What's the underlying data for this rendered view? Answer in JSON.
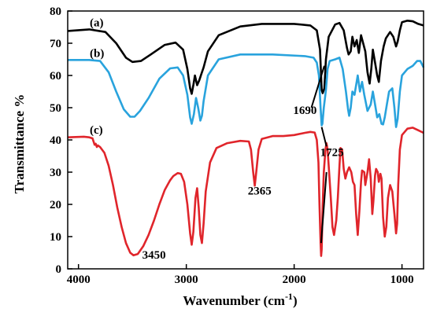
{
  "chart_data": {
    "type": "line",
    "title": "",
    "xlabel": "Wavenumber (cm",
    "xlabel_sup": "-1",
    "xlabel_close": ")",
    "ylabel": "Transmittance %",
    "xlim": [
      4100,
      800
    ],
    "ylim": [
      0,
      80
    ],
    "x_reversed": true,
    "grid": false,
    "legend": "none",
    "x_ticks": [
      4000,
      3000,
      2000,
      1000
    ],
    "y_ticks": [
      0,
      10,
      20,
      30,
      40,
      50,
      60,
      70,
      80
    ],
    "series": [
      {
        "name": "(a)",
        "color": "#000000",
        "points": [
          [
            4100,
            73.8
          ],
          [
            3900,
            74.3
          ],
          [
            3750,
            73.5
          ],
          [
            3650,
            70
          ],
          [
            3560,
            65.5
          ],
          [
            3500,
            64.2
          ],
          [
            3420,
            64.5
          ],
          [
            3330,
            66.5
          ],
          [
            3200,
            69.5
          ],
          [
            3100,
            70.2
          ],
          [
            3030,
            68
          ],
          [
            2990,
            62
          ],
          [
            2965,
            56
          ],
          [
            2950,
            54.3
          ],
          [
            2935,
            57
          ],
          [
            2920,
            60
          ],
          [
            2900,
            57
          ],
          [
            2880,
            58.5
          ],
          [
            2860,
            60.5
          ],
          [
            2840,
            62.5
          ],
          [
            2800,
            67.5
          ],
          [
            2700,
            72.5
          ],
          [
            2500,
            75.2
          ],
          [
            2300,
            76
          ],
          [
            2000,
            76
          ],
          [
            1850,
            75.5
          ],
          [
            1790,
            74
          ],
          [
            1760,
            68
          ],
          [
            1745,
            55.5
          ],
          [
            1735,
            54.5
          ],
          [
            1720,
            56
          ],
          [
            1705,
            65
          ],
          [
            1680,
            72
          ],
          [
            1620,
            75.8
          ],
          [
            1580,
            76.3
          ],
          [
            1540,
            74
          ],
          [
            1510,
            68.5
          ],
          [
            1495,
            66.5
          ],
          [
            1475,
            67.5
          ],
          [
            1460,
            72
          ],
          [
            1440,
            69
          ],
          [
            1420,
            71
          ],
          [
            1400,
            67
          ],
          [
            1380,
            72.5
          ],
          [
            1340,
            67.5
          ],
          [
            1320,
            61
          ],
          [
            1300,
            57.5
          ],
          [
            1285,
            62
          ],
          [
            1270,
            68
          ],
          [
            1250,
            64
          ],
          [
            1230,
            60
          ],
          [
            1215,
            58
          ],
          [
            1195,
            64.5
          ],
          [
            1170,
            69
          ],
          [
            1150,
            71.5
          ],
          [
            1110,
            73.5
          ],
          [
            1080,
            72
          ],
          [
            1055,
            69
          ],
          [
            1040,
            70.5
          ],
          [
            1020,
            74
          ],
          [
            1000,
            76.5
          ],
          [
            950,
            77
          ],
          [
            900,
            76.8
          ],
          [
            850,
            76
          ],
          [
            800,
            75.5
          ]
        ]
      },
      {
        "name": "(b)",
        "color": "#29a3dd",
        "secondary_color": "#8e74d8",
        "points": [
          [
            4100,
            64.8
          ],
          [
            3900,
            64.8
          ],
          [
            3800,
            64.5
          ],
          [
            3720,
            61
          ],
          [
            3650,
            55
          ],
          [
            3580,
            49.5
          ],
          [
            3520,
            47.2
          ],
          [
            3480,
            47.2
          ],
          [
            3430,
            49
          ],
          [
            3350,
            53
          ],
          [
            3250,
            59
          ],
          [
            3150,
            62.2
          ],
          [
            3080,
            62.5
          ],
          [
            3030,
            60
          ],
          [
            2990,
            54
          ],
          [
            2965,
            47
          ],
          [
            2950,
            45
          ],
          [
            2930,
            48
          ],
          [
            2910,
            53
          ],
          [
            2890,
            50
          ],
          [
            2870,
            46
          ],
          [
            2855,
            47.5
          ],
          [
            2840,
            52
          ],
          [
            2800,
            60
          ],
          [
            2700,
            65
          ],
          [
            2500,
            66.5
          ],
          [
            2200,
            66.5
          ],
          [
            1900,
            66
          ],
          [
            1820,
            65.5
          ],
          [
            1790,
            64
          ],
          [
            1770,
            60
          ],
          [
            1755,
            50
          ],
          [
            1745,
            44.5
          ],
          [
            1738,
            45
          ],
          [
            1725,
            50
          ],
          [
            1705,
            55.5
          ],
          [
            1690,
            62
          ],
          [
            1670,
            64.5
          ],
          [
            1620,
            65
          ],
          [
            1580,
            65.5
          ],
          [
            1550,
            62
          ],
          [
            1520,
            55
          ],
          [
            1500,
            49.5
          ],
          [
            1490,
            47.5
          ],
          [
            1475,
            50
          ],
          [
            1460,
            55
          ],
          [
            1440,
            54
          ],
          [
            1410,
            60
          ],
          [
            1390,
            55
          ],
          [
            1370,
            58
          ],
          [
            1350,
            54
          ],
          [
            1320,
            49
          ],
          [
            1290,
            51
          ],
          [
            1270,
            55
          ],
          [
            1250,
            51
          ],
          [
            1230,
            47
          ],
          [
            1210,
            48
          ],
          [
            1190,
            45
          ],
          [
            1175,
            44.8
          ],
          [
            1160,
            47
          ],
          [
            1140,
            51
          ],
          [
            1120,
            55
          ],
          [
            1090,
            56
          ],
          [
            1070,
            50
          ],
          [
            1055,
            44
          ],
          [
            1040,
            46.5
          ],
          [
            1020,
            55
          ],
          [
            1000,
            60
          ],
          [
            950,
            62
          ],
          [
            900,
            63
          ],
          [
            860,
            64.5
          ],
          [
            830,
            64.5
          ],
          [
            800,
            62.5
          ]
        ]
      },
      {
        "name": "(c)",
        "color": "#e0252b",
        "points": [
          [
            4100,
            40.8
          ],
          [
            3950,
            41
          ],
          [
            3900,
            40.8
          ],
          [
            3870,
            40.5
          ],
          [
            3850,
            38.5
          ],
          [
            3840,
            38.8
          ],
          [
            3830,
            37.8
          ],
          [
            3820,
            38.3
          ],
          [
            3800,
            37.8
          ],
          [
            3760,
            36
          ],
          [
            3720,
            32
          ],
          [
            3680,
            26
          ],
          [
            3640,
            19
          ],
          [
            3600,
            13
          ],
          [
            3560,
            8
          ],
          [
            3520,
            5
          ],
          [
            3490,
            4.2
          ],
          [
            3450,
            4.6
          ],
          [
            3400,
            7
          ],
          [
            3350,
            10.5
          ],
          [
            3300,
            15
          ],
          [
            3250,
            20
          ],
          [
            3200,
            24.5
          ],
          [
            3150,
            27.5
          ],
          [
            3120,
            28.8
          ],
          [
            3080,
            29.7
          ],
          [
            3050,
            29.5
          ],
          [
            3020,
            27
          ],
          [
            2990,
            20
          ],
          [
            2965,
            11
          ],
          [
            2950,
            7.5
          ],
          [
            2935,
            11.5
          ],
          [
            2915,
            22
          ],
          [
            2900,
            25
          ],
          [
            2885,
            19
          ],
          [
            2870,
            10.5
          ],
          [
            2855,
            8
          ],
          [
            2840,
            14
          ],
          [
            2820,
            24
          ],
          [
            2780,
            33
          ],
          [
            2720,
            37.5
          ],
          [
            2620,
            39
          ],
          [
            2500,
            39.7
          ],
          [
            2420,
            39.5
          ],
          [
            2400,
            37
          ],
          [
            2380,
            30
          ],
          [
            2365,
            25.8
          ],
          [
            2350,
            30.5
          ],
          [
            2330,
            37
          ],
          [
            2300,
            40.3
          ],
          [
            2200,
            41.2
          ],
          [
            2100,
            41.2
          ],
          [
            2000,
            41.5
          ],
          [
            1900,
            42.2
          ],
          [
            1850,
            42.5
          ],
          [
            1810,
            42.3
          ],
          [
            1790,
            40
          ],
          [
            1775,
            33
          ],
          [
            1765,
            20
          ],
          [
            1755,
            8
          ],
          [
            1750,
            4
          ],
          [
            1745,
            6
          ],
          [
            1735,
            20
          ],
          [
            1725,
            30
          ],
          [
            1710,
            37
          ],
          [
            1700,
            39
          ],
          [
            1690,
            37
          ],
          [
            1680,
            32
          ],
          [
            1660,
            22
          ],
          [
            1645,
            13
          ],
          [
            1630,
            10.5
          ],
          [
            1610,
            15
          ],
          [
            1595,
            22
          ],
          [
            1580,
            32
          ],
          [
            1570,
            37.5
          ],
          [
            1555,
            37
          ],
          [
            1540,
            31
          ],
          [
            1525,
            28
          ],
          [
            1510,
            30
          ],
          [
            1490,
            31.5
          ],
          [
            1470,
            30
          ],
          [
            1455,
            27
          ],
          [
            1440,
            26
          ],
          [
            1425,
            17
          ],
          [
            1410,
            10.5
          ],
          [
            1395,
            18
          ],
          [
            1380,
            27
          ],
          [
            1370,
            30.5
          ],
          [
            1350,
            30
          ],
          [
            1340,
            26
          ],
          [
            1320,
            30
          ],
          [
            1305,
            34
          ],
          [
            1290,
            28
          ],
          [
            1275,
            17
          ],
          [
            1265,
            21
          ],
          [
            1250,
            29
          ],
          [
            1240,
            31
          ],
          [
            1225,
            30
          ],
          [
            1215,
            27
          ],
          [
            1200,
            29.5
          ],
          [
            1190,
            28
          ],
          [
            1175,
            16
          ],
          [
            1160,
            10
          ],
          [
            1145,
            13
          ],
          [
            1130,
            22
          ],
          [
            1110,
            26
          ],
          [
            1090,
            24
          ],
          [
            1070,
            17
          ],
          [
            1055,
            11
          ],
          [
            1045,
            14
          ],
          [
            1035,
            26
          ],
          [
            1020,
            37
          ],
          [
            1000,
            41.5
          ],
          [
            950,
            43.5
          ],
          [
            900,
            43.8
          ],
          [
            850,
            43
          ],
          [
            800,
            42.2
          ]
        ]
      }
    ],
    "annotations": [
      {
        "text": "1690",
        "x": 1900,
        "y": 48
      },
      {
        "text": "1725",
        "x": 1650,
        "y": 35
      },
      {
        "text": "2365",
        "x": 2320,
        "y": 23
      },
      {
        "text": "3450",
        "x": 3300,
        "y": 3.2
      }
    ]
  }
}
